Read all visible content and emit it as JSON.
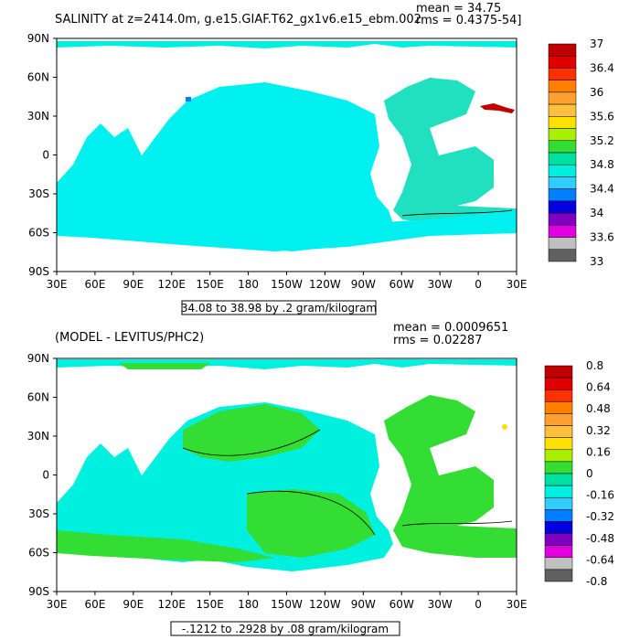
{
  "top_panel": {
    "title": "SALINITY at z=2414.0m, g.e15.GIAF.T62_gx1v6.e15_ebm.002",
    "mean_text": "mean = 34.75",
    "rms_text": "rms = 0.4375-54]",
    "range_text": "34.08 to 38.98 by .2 gram/kilogram",
    "colorbar": {
      "labels": [
        "37",
        "36.4",
        "36",
        "35.6",
        "35.2",
        "34.8",
        "34.4",
        "34",
        "33.6",
        "33"
      ],
      "colors": [
        "#c00000",
        "#e00000",
        "#ff3000",
        "#ff8000",
        "#ffa030",
        "#ffc040",
        "#ffe000",
        "#aaee00",
        "#33dd33",
        "#00e0a0",
        "#00f0e0",
        "#33ccff",
        "#0080ff",
        "#0000e0",
        "#8000c0",
        "#e000e0",
        "#c0c0c0",
        "#606060"
      ]
    }
  },
  "bottom_panel": {
    "title": "(MODEL - LEVITUS/PHC2)",
    "mean_text": "mean = 0.0009651",
    "rms_text": "rms = 0.02287",
    "range_text": "-.1212 to .2928 by .08 gram/kilogram",
    "colorbar": {
      "labels": [
        "0.8",
        "0.64",
        "0.48",
        "0.32",
        "0.16",
        "0",
        "-0.16",
        "-0.32",
        "-0.48",
        "-0.64",
        "-0.8"
      ],
      "colors": [
        "#c00000",
        "#e00000",
        "#ff3000",
        "#ff8000",
        "#ffa030",
        "#ffc040",
        "#ffe000",
        "#aaee00",
        "#33dd33",
        "#00e0a0",
        "#00f0e0",
        "#33ccff",
        "#0080ff",
        "#0000e0",
        "#8000c0",
        "#e000e0",
        "#c0c0c0",
        "#606060"
      ]
    }
  },
  "chart_data": [
    {
      "type": "heatmap",
      "title": "SALINITY at z=2414.0m, g.e15.GIAF.T62_gx1v6.e15_ebm.002",
      "x_ticks": [
        "30E",
        "60E",
        "90E",
        "120E",
        "150E",
        "180",
        "150W",
        "120W",
        "90W",
        "60W",
        "30W",
        "0",
        "30E"
      ],
      "y_ticks": [
        "90N",
        "60N",
        "30N",
        "0",
        "30S",
        "60S",
        "90S"
      ],
      "colorbar_labels": [
        "37",
        "36.4",
        "36",
        "35.6",
        "35.2",
        "34.8",
        "34.4",
        "34",
        "33.6",
        "33"
      ],
      "mean": 34.75,
      "range": "34.08 to 38.98 by .2 gram/kilogram"
    },
    {
      "type": "heatmap",
      "title": "(MODEL - LEVITUS/PHC2)",
      "x_ticks": [
        "30E",
        "60E",
        "90E",
        "120E",
        "150E",
        "180",
        "150W",
        "120W",
        "90W",
        "60W",
        "30W",
        "0",
        "30E"
      ],
      "y_ticks": [
        "90N",
        "60N",
        "30N",
        "0",
        "30S",
        "60S",
        "90S"
      ],
      "colorbar_labels": [
        "0.8",
        "0.64",
        "0.48",
        "0.32",
        "0.16",
        "0",
        "-0.16",
        "-0.32",
        "-0.48",
        "-0.64",
        "-0.8"
      ],
      "mean": 0.0009651,
      "rms": 0.02287,
      "range": "-.1212 to .2928 by .08 gram/kilogram"
    }
  ]
}
